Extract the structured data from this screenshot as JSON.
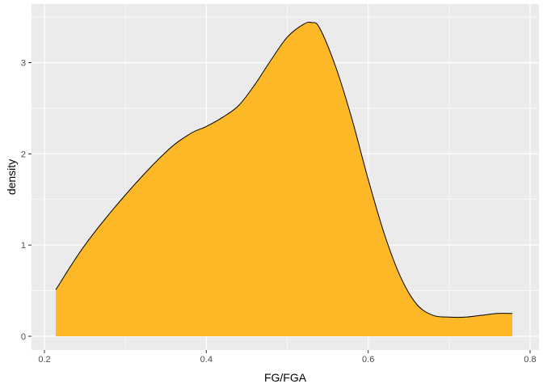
{
  "chart_data": {
    "type": "area",
    "title": "",
    "xlabel": "FG/FGA",
    "ylabel": "density",
    "xlim": [
      0.2,
      0.8
    ],
    "ylim": [
      0,
      3.45
    ],
    "x_ticks": [
      0.2,
      0.4,
      0.6,
      0.8
    ],
    "x_tick_labels": [
      "0.2",
      "0.4",
      "0.6",
      "0.8"
    ],
    "y_ticks": [
      0,
      1,
      2,
      3
    ],
    "y_tick_labels": [
      "0",
      "1",
      "2",
      "3"
    ],
    "grid": true,
    "legend": "none",
    "colors": {
      "fill": "#FDB827",
      "line": "#000000",
      "panel_background": "#EBEBEB",
      "grid": "#FFFFFF"
    },
    "x": [
      0.214,
      0.25,
      0.3,
      0.35,
      0.38,
      0.4,
      0.42,
      0.44,
      0.46,
      0.48,
      0.5,
      0.52,
      0.53,
      0.54,
      0.56,
      0.58,
      0.6,
      0.62,
      0.64,
      0.66,
      0.68,
      0.7,
      0.72,
      0.74,
      0.76,
      0.778
    ],
    "y": [
      0.51,
      1.0,
      1.55,
      2.02,
      2.22,
      2.3,
      2.4,
      2.53,
      2.76,
      3.03,
      3.28,
      3.42,
      3.44,
      3.38,
      2.95,
      2.38,
      1.72,
      1.12,
      0.65,
      0.35,
      0.23,
      0.21,
      0.21,
      0.23,
      0.25,
      0.25
    ]
  }
}
